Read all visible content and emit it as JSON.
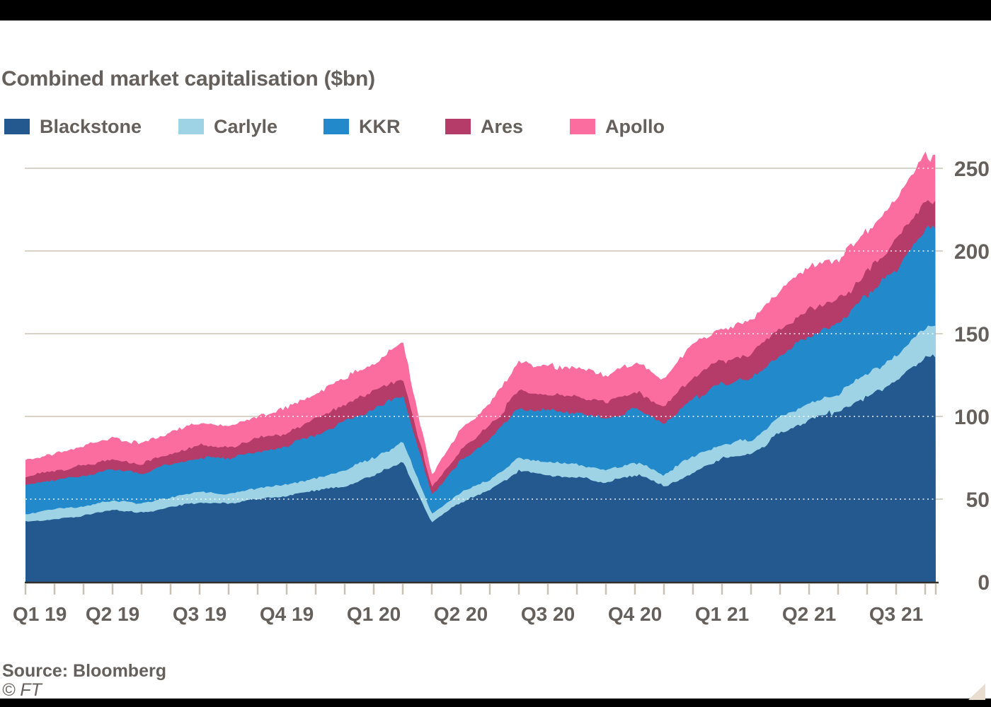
{
  "header": {
    "title": "Combined market capitalisation ($bn)"
  },
  "chart_data": {
    "type": "area",
    "stacked": true,
    "title": "Combined market capitalisation ($bn)",
    "unit": "$bn",
    "x_start": "2019-01",
    "x_end": "2021-08",
    "x_tick_interval": "monthly",
    "x_labels": [
      "Q1 19",
      "Q2 19",
      "Q3 19",
      "Q4 19",
      "Q1 20",
      "Q2 20",
      "Q3 20",
      "Q4 20",
      "Q1 21",
      "Q2 21",
      "Q3 21"
    ],
    "y_ticks": [
      "0",
      "50",
      "100",
      "150",
      "200",
      "250"
    ],
    "ylim": [
      0,
      265
    ],
    "legend_position": "top",
    "grid": "horizontal",
    "series": [
      {
        "name": "Blackstone",
        "color": "#24598f",
        "values": [
          36,
          38,
          40,
          43,
          42,
          45,
          48,
          47,
          50,
          52,
          55,
          58,
          64,
          73,
          36,
          48,
          55,
          67,
          64,
          63,
          60,
          65,
          58,
          66,
          75,
          77,
          90,
          98,
          103,
          112,
          122,
          136
        ]
      },
      {
        "name": "Carlyle",
        "color": "#9ed2e5",
        "values": [
          5.2,
          5.5,
          5.8,
          6,
          5.5,
          6,
          6.5,
          6.3,
          6.8,
          7,
          8,
          9.8,
          10.5,
          12,
          4.5,
          6,
          7,
          8.3,
          8.4,
          8,
          7.8,
          7.5,
          7,
          9.5,
          8.5,
          9,
          9.5,
          10,
          11,
          13,
          15,
          18
        ]
      },
      {
        "name": "KKR",
        "color": "#2289cb",
        "values": [
          17,
          18,
          18.5,
          19,
          18,
          20,
          21,
          21,
          22,
          23,
          26,
          29,
          30,
          28,
          12,
          19,
          24,
          30,
          31,
          32,
          31,
          32,
          30,
          35,
          36,
          36,
          38,
          41,
          42,
          47,
          52,
          58
        ]
      },
      {
        "name": "Ares",
        "color": "#b53c69",
        "values": [
          5.2,
          5.5,
          6,
          6,
          6,
          6.5,
          7,
          7,
          7.5,
          8,
          9,
          10,
          10.5,
          10,
          4.5,
          7,
          8,
          10,
          10,
          9.5,
          9.5,
          11,
          10.5,
          13.5,
          14,
          14.5,
          15,
          15.5,
          14,
          15,
          16,
          17
        ]
      },
      {
        "name": "Apollo",
        "color": "#fa6d9e",
        "values": [
          9.6,
          11,
          12,
          13,
          12.5,
          13,
          14,
          13.5,
          14,
          15,
          16,
          16.5,
          17,
          21,
          8,
          12,
          13,
          17,
          17,
          17.5,
          16,
          17.5,
          16.5,
          20,
          20,
          21,
          24,
          25,
          24,
          25,
          26,
          28
        ]
      }
    ]
  },
  "footer": {
    "source": "Source: Bloomberg",
    "copyright": "© FT"
  },
  "decor": {
    "top_bar_color": "#000000",
    "bottom_bar_color": "#000000",
    "corner_triangle_color": "#e9ddd0",
    "gridline_color": "#d9d2c8",
    "axis_color": "#33302c",
    "text_color": "#66605c"
  }
}
